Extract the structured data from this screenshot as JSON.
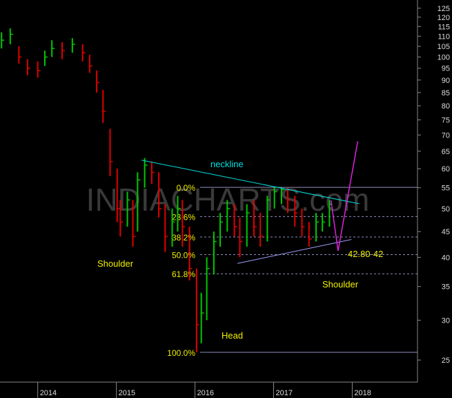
{
  "chart_data": {
    "type": "ohlc",
    "log_scale": true,
    "x": [
      2013.54,
      2013.65,
      2013.76,
      2013.87,
      2014.0,
      2014.09,
      2014.18,
      2014.31,
      2014.44,
      2014.57,
      2014.66,
      2014.75,
      2014.83,
      2014.92,
      2015.01,
      2015.05,
      2015.14,
      2015.21,
      2015.27,
      2015.36,
      2015.45,
      2015.54,
      2015.62,
      2015.71,
      2015.78,
      2015.84,
      2015.93,
      2016.02,
      2016.08,
      2016.15,
      2016.24,
      2016.32,
      2016.41,
      2016.5,
      2016.57,
      2016.66,
      2016.75,
      2016.83,
      2016.92,
      2017.01,
      2017.1,
      2017.18,
      2017.27,
      2017.36,
      2017.45,
      2017.54,
      2017.62,
      2017.71
    ],
    "high": [
      112,
      114,
      105,
      99,
      98,
      103,
      108,
      107,
      109,
      106,
      101,
      94,
      86,
      72,
      60,
      52,
      54,
      52,
      59,
      63,
      62,
      59,
      51,
      50,
      53,
      52,
      46,
      38,
      34,
      40,
      45,
      49,
      52,
      51,
      48,
      51,
      52,
      49,
      53,
      55.1,
      55,
      55,
      53,
      50,
      47,
      49,
      49,
      52
    ],
    "low": [
      104,
      106,
      97,
      92,
      91,
      96,
      100,
      99,
      102,
      98,
      93,
      85,
      74,
      58,
      47,
      44,
      46,
      42,
      45,
      55,
      56,
      48,
      41,
      42,
      45,
      42,
      36,
      25.9,
      27,
      30,
      37,
      42,
      45,
      44,
      40,
      42,
      44,
      42,
      43,
      50,
      51,
      49,
      46,
      44,
      42,
      43,
      45,
      46
    ],
    "close": [
      108,
      111,
      100,
      95,
      94,
      100,
      104,
      103,
      106,
      102,
      96,
      89,
      78,
      62,
      50,
      47,
      52,
      44,
      57,
      61,
      59,
      50,
      44,
      47,
      50,
      46,
      38,
      29.4,
      31,
      38,
      43,
      47,
      50,
      46,
      43,
      49,
      46,
      44,
      52,
      54,
      54.5,
      52,
      49,
      46,
      43.5,
      47,
      47,
      51
    ],
    "up_color": "#00c800",
    "down_color": "#e00000",
    "xlim": [
      2013.52,
      2018.83
    ],
    "xticks": [
      2014,
      2015,
      2016,
      2017,
      2018
    ],
    "ylim": [
      22.6,
      129.8
    ],
    "yticks": [
      25,
      30,
      35,
      40,
      45,
      50,
      55,
      60,
      65,
      70,
      75,
      80,
      85,
      90,
      95,
      100,
      105,
      110,
      115,
      120,
      125
    ],
    "fib_levels": [
      {
        "label": "0.0%",
        "value": 55.1
      },
      {
        "label": "23.6%",
        "value": 48.2
      },
      {
        "label": "38.2%",
        "value": 43.9
      },
      {
        "label": "50.0%",
        "value": 40.5
      },
      {
        "label": "61.8%",
        "value": 37.1
      },
      {
        "label": "100.0%",
        "value": 25.9
      }
    ],
    "fib_color": "#9090c0",
    "label_color": "#f0f000",
    "neckline": {
      "label": "neckline",
      "color": "#00e0e0",
      "x": [
        2015.32,
        2018.09
      ],
      "y": [
        62.4,
        51.1
      ]
    },
    "support_line": {
      "color": "#a0a0ff",
      "x": [
        2016.54,
        2017.99
      ],
      "y": [
        38.9,
        43.4
      ]
    },
    "projection": {
      "color": "#e020e0",
      "x": [
        2017.73,
        2017.82,
        2018.07
      ],
      "y": [
        51.9,
        41.2,
        68.0
      ]
    },
    "annotations": [
      "Shoulder",
      "Shoulder",
      "Head",
      "42.80-42"
    ],
    "watermark": "INDIACHARTS.com"
  }
}
